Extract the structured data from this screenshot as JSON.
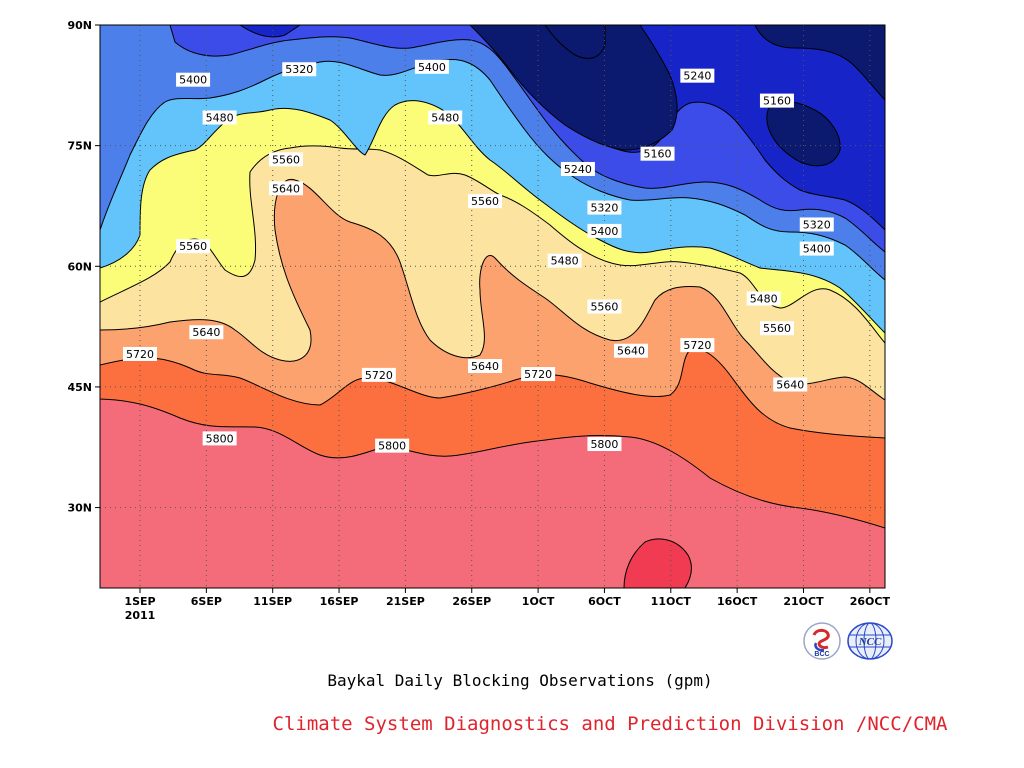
{
  "chart_data": {
    "type": "heatmap",
    "title": "Baykal Daily Blocking Observations (gpm)",
    "credit": "Climate System Diagnostics and Prediction Division /NCC/CMA",
    "xlabel": "",
    "ylabel": "",
    "x_tick_labels": [
      "1SEP",
      "6SEP",
      "11SEP",
      "16SEP",
      "21SEP",
      "26SEP",
      "1OCT",
      "6OCT",
      "11OCT",
      "16OCT",
      "21OCT",
      "26OCT"
    ],
    "x_year_label": "2011",
    "y_tick_labels": [
      "30N",
      "45N",
      "60N",
      "75N",
      "90N"
    ],
    "ylim": [
      20,
      90
    ],
    "contour_levels": [
      5160,
      5240,
      5320,
      5400,
      5480,
      5560,
      5640,
      5720,
      5800,
      5880
    ],
    "fill_colors": [
      "#0b1a6e",
      "#1725c8",
      "#3c4ce8",
      "#4d7fea",
      "#62c4fb",
      "#fbfc78",
      "#fce3a0",
      "#fca26f",
      "#fb703e",
      "#f46c7a",
      "#f03b52"
    ],
    "contour_labels": [
      {
        "text": "5400",
        "date": "5SEP",
        "lat": 83.2
      },
      {
        "text": "5320",
        "date": "13SEP",
        "lat": 84.5
      },
      {
        "text": "5400",
        "date": "23SEP",
        "lat": 84.8
      },
      {
        "text": "5480",
        "date": "7SEP",
        "lat": 78.5
      },
      {
        "text": "5480",
        "date": "24SEP",
        "lat": 78.5
      },
      {
        "text": "5560",
        "date": "12SEP",
        "lat": 73.3
      },
      {
        "text": "5640",
        "date": "12SEP",
        "lat": 69.7
      },
      {
        "text": "5560",
        "date": "5SEP",
        "lat": 62.5
      },
      {
        "text": "5640",
        "date": "6SEP",
        "lat": 51.8
      },
      {
        "text": "5720",
        "date": "1SEP",
        "lat": 49.1
      },
      {
        "text": "5560",
        "date": "27SEP",
        "lat": 68.1
      },
      {
        "text": "5240",
        "date": "4OCT",
        "lat": 72.1
      },
      {
        "text": "5160",
        "date": "10OCT",
        "lat": 74.0
      },
      {
        "text": "5240",
        "date": "13OCT",
        "lat": 83.7
      },
      {
        "text": "5160",
        "date": "19OCT",
        "lat": 80.6
      },
      {
        "text": "5320",
        "date": "6OCT",
        "lat": 67.3
      },
      {
        "text": "5400",
        "date": "6OCT",
        "lat": 64.4
      },
      {
        "text": "5480",
        "date": "3OCT",
        "lat": 60.7
      },
      {
        "text": "5560",
        "date": "6OCT",
        "lat": 55.0
      },
      {
        "text": "5640",
        "date": "8OCT",
        "lat": 49.5
      },
      {
        "text": "5720",
        "date": "13OCT",
        "lat": 50.2
      },
      {
        "text": "5720",
        "date": "19SEP",
        "lat": 46.5
      },
      {
        "text": "5640",
        "date": "27SEP",
        "lat": 47.6
      },
      {
        "text": "5720",
        "date": "1OCT",
        "lat": 46.6
      },
      {
        "text": "5480",
        "date": "18OCT",
        "lat": 56.0
      },
      {
        "text": "5560",
        "date": "19OCT",
        "lat": 52.3
      },
      {
        "text": "5640",
        "date": "20OCT",
        "lat": 45.3
      },
      {
        "text": "5320",
        "date": "22OCT",
        "lat": 65.2
      },
      {
        "text": "5400",
        "date": "22OCT",
        "lat": 62.2
      },
      {
        "text": "5800",
        "date": "7SEP",
        "lat": 38.6
      },
      {
        "text": "5800",
        "date": "20SEP",
        "lat": 37.7
      },
      {
        "text": "5800",
        "date": "6OCT",
        "lat": 37.9
      }
    ],
    "grid": true
  },
  "logos": {
    "bcc_text": "BCC",
    "ncc_text": "NCC"
  },
  "colors": {
    "credit": "#e0232d"
  }
}
